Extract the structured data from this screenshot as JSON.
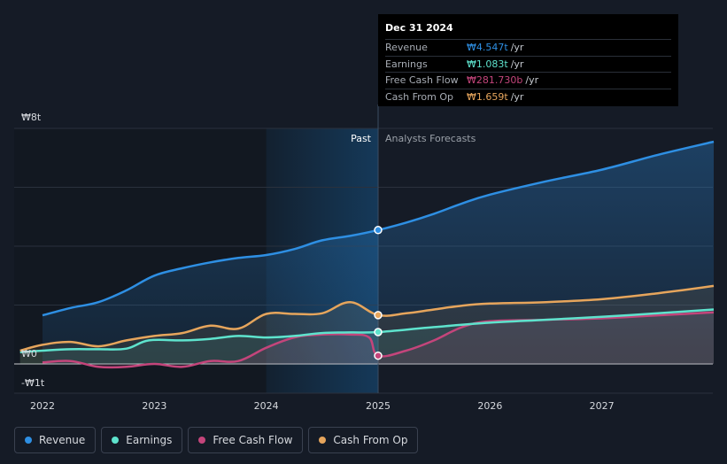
{
  "chart_data": {
    "type": "area",
    "y_axis_labels": {
      "top": "₩8t",
      "zero": "₩0",
      "bottom": "-₩1t"
    },
    "ylim": [
      -1,
      8
    ],
    "xlim": [
      2021.8,
      2028.0
    ],
    "x_ticks": [
      {
        "label": "2022",
        "value": 2022
      },
      {
        "label": "2023",
        "value": 2023
      },
      {
        "label": "2024",
        "value": 2024
      },
      {
        "label": "2025",
        "value": 2025
      },
      {
        "label": "2026",
        "value": 2026
      },
      {
        "label": "2027",
        "value": 2027
      }
    ],
    "divider": {
      "x": 2025,
      "past_label": "Past",
      "forecast_label": "Analysts Forecasts",
      "past_highlight_start": 2024.0
    },
    "series": [
      {
        "name": "Revenue",
        "color": "#2e8fe3",
        "points": [
          [
            2022.0,
            1.65
          ],
          [
            2022.25,
            1.9
          ],
          [
            2022.5,
            2.1
          ],
          [
            2022.75,
            2.5
          ],
          [
            2023.0,
            3.0
          ],
          [
            2023.25,
            3.25
          ],
          [
            2023.5,
            3.45
          ],
          [
            2023.75,
            3.6
          ],
          [
            2024.0,
            3.7
          ],
          [
            2024.25,
            3.9
          ],
          [
            2024.5,
            4.2
          ],
          [
            2024.75,
            4.35
          ],
          [
            2025.0,
            4.547
          ],
          [
            2025.25,
            4.8
          ],
          [
            2025.5,
            5.1
          ],
          [
            2025.75,
            5.45
          ],
          [
            2026.0,
            5.75
          ],
          [
            2026.5,
            6.2
          ],
          [
            2027.0,
            6.6
          ],
          [
            2027.5,
            7.1
          ],
          [
            2028.0,
            7.55
          ]
        ]
      },
      {
        "name": "Earnings",
        "color": "#5ee3cd",
        "points": [
          [
            2021.8,
            0.4
          ],
          [
            2022.0,
            0.45
          ],
          [
            2022.25,
            0.5
          ],
          [
            2022.5,
            0.5
          ],
          [
            2022.75,
            0.52
          ],
          [
            2022.95,
            0.8
          ],
          [
            2023.25,
            0.8
          ],
          [
            2023.5,
            0.85
          ],
          [
            2023.75,
            0.95
          ],
          [
            2024.0,
            0.9
          ],
          [
            2024.25,
            0.95
          ],
          [
            2024.5,
            1.05
          ],
          [
            2024.75,
            1.07
          ],
          [
            2025.0,
            1.083
          ],
          [
            2025.5,
            1.25
          ],
          [
            2026.0,
            1.4
          ],
          [
            2026.5,
            1.5
          ],
          [
            2027.0,
            1.6
          ],
          [
            2027.5,
            1.72
          ],
          [
            2028.0,
            1.85
          ]
        ]
      },
      {
        "name": "Free Cash Flow",
        "color": "#c4457b",
        "points": [
          [
            2022.0,
            0.05
          ],
          [
            2022.25,
            0.1
          ],
          [
            2022.5,
            -0.1
          ],
          [
            2022.75,
            -0.1
          ],
          [
            2023.0,
            0.0
          ],
          [
            2023.25,
            -0.1
          ],
          [
            2023.5,
            0.1
          ],
          [
            2023.75,
            0.1
          ],
          [
            2024.0,
            0.55
          ],
          [
            2024.25,
            0.9
          ],
          [
            2024.5,
            1.0
          ],
          [
            2024.75,
            1.0
          ],
          [
            2024.92,
            0.9
          ],
          [
            2025.0,
            0.28
          ],
          [
            2025.25,
            0.45
          ],
          [
            2025.5,
            0.8
          ],
          [
            2025.75,
            1.25
          ],
          [
            2026.0,
            1.45
          ],
          [
            2026.5,
            1.5
          ],
          [
            2027.0,
            1.55
          ],
          [
            2027.5,
            1.65
          ],
          [
            2028.0,
            1.75
          ]
        ]
      },
      {
        "name": "Cash From Op",
        "color": "#e6a55c",
        "points": [
          [
            2021.8,
            0.45
          ],
          [
            2022.0,
            0.65
          ],
          [
            2022.25,
            0.75
          ],
          [
            2022.5,
            0.6
          ],
          [
            2022.75,
            0.8
          ],
          [
            2023.0,
            0.95
          ],
          [
            2023.25,
            1.05
          ],
          [
            2023.5,
            1.3
          ],
          [
            2023.75,
            1.2
          ],
          [
            2024.0,
            1.7
          ],
          [
            2024.25,
            1.7
          ],
          [
            2024.5,
            1.72
          ],
          [
            2024.75,
            2.1
          ],
          [
            2025.0,
            1.659
          ],
          [
            2025.25,
            1.72
          ],
          [
            2025.5,
            1.85
          ],
          [
            2025.75,
            1.98
          ],
          [
            2026.0,
            2.05
          ],
          [
            2026.5,
            2.1
          ],
          [
            2027.0,
            2.2
          ],
          [
            2027.5,
            2.4
          ],
          [
            2028.0,
            2.65
          ]
        ]
      }
    ]
  },
  "tooltip": {
    "date": "Dec 31 2024",
    "rows": [
      {
        "label": "Revenue",
        "value": "₩4.547t",
        "unit": "/yr",
        "color": "#2e8fe3"
      },
      {
        "label": "Earnings",
        "value": "₩1.083t",
        "unit": "/yr",
        "color": "#5ee3cd"
      },
      {
        "label": "Free Cash Flow",
        "value": "₩281.730b",
        "unit": "/yr",
        "color": "#c4457b"
      },
      {
        "label": "Cash From Op",
        "value": "₩1.659t",
        "unit": "/yr",
        "color": "#e6a55c"
      }
    ]
  },
  "legend": [
    {
      "label": "Revenue",
      "color": "#2e8fe3"
    },
    {
      "label": "Earnings",
      "color": "#5ee3cd"
    },
    {
      "label": "Free Cash Flow",
      "color": "#c4457b"
    },
    {
      "label": "Cash From Op",
      "color": "#e6a55c"
    }
  ]
}
